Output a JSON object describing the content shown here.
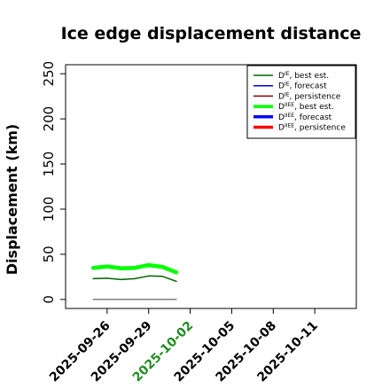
{
  "chart_data": {
    "type": "line",
    "title": "Ice edge displacement distance",
    "ylabel": "Displacement (km)",
    "xlabel": "",
    "ylim": [
      -10,
      260
    ],
    "yticks": [
      0,
      50,
      100,
      150,
      200,
      250
    ],
    "xlim": [
      "2025-09-23",
      "2025-10-14"
    ],
    "xticks": [
      "2025-09-26",
      "2025-09-29",
      "2025-10-02",
      "2025-10-05",
      "2025-10-08",
      "2025-10-11"
    ],
    "highlight_tick": "2025-10-02",
    "highlight_color": "#228B22",
    "grid": false,
    "legend_position": "top-right",
    "series": [
      {
        "name": "D^IE, best est.",
        "legend_main": "D",
        "legend_sup": "IE",
        "legend_suffix": ", best est.",
        "color": "#006400",
        "width": 1.5,
        "x": [
          "2025-09-25",
          "2025-09-26",
          "2025-09-27",
          "2025-09-28",
          "2025-09-29",
          "2025-09-30",
          "2025-10-01"
        ],
        "values": [
          23,
          23.5,
          22,
          23,
          26,
          25.5,
          20
        ]
      },
      {
        "name": "D^IE, forecast",
        "legend_main": "D",
        "legend_sup": "IE",
        "legend_suffix": ", forecast",
        "color": "#0000CC",
        "width": 1.5,
        "x": [],
        "values": []
      },
      {
        "name": "D^IE, persistence",
        "legend_main": "D",
        "legend_sup": "IE",
        "legend_suffix": ", persistence",
        "color": "#8B0000",
        "width": 1.5,
        "x": [],
        "values": []
      },
      {
        "name": "D^IIEE, best est.",
        "legend_main": "D",
        "legend_sup": "IIEE",
        "legend_suffix": ", best est.",
        "color": "#00FF00",
        "width": 4.5,
        "x": [
          "2025-09-25",
          "2025-09-26",
          "2025-09-27",
          "2025-09-28",
          "2025-09-29",
          "2025-09-30",
          "2025-10-01"
        ],
        "values": [
          35,
          36.5,
          34.5,
          35,
          38,
          36,
          30
        ]
      },
      {
        "name": "D^IIEE, forecast",
        "legend_main": "D",
        "legend_sup": "IIEE",
        "legend_suffix": ", forecast",
        "color": "#0000FF",
        "width": 4.5,
        "x": [],
        "values": []
      },
      {
        "name": "D^IIEE, persistence",
        "legend_main": "D",
        "legend_sup": "IIEE",
        "legend_suffix": ", persistence",
        "color": "#FF0000",
        "width": 4.5,
        "x": [],
        "values": []
      },
      {
        "name": "zero line",
        "legend": false,
        "color": "#555555",
        "width": 1.2,
        "x": [
          "2025-09-25",
          "2025-10-01"
        ],
        "values": [
          0,
          0
        ]
      }
    ]
  }
}
